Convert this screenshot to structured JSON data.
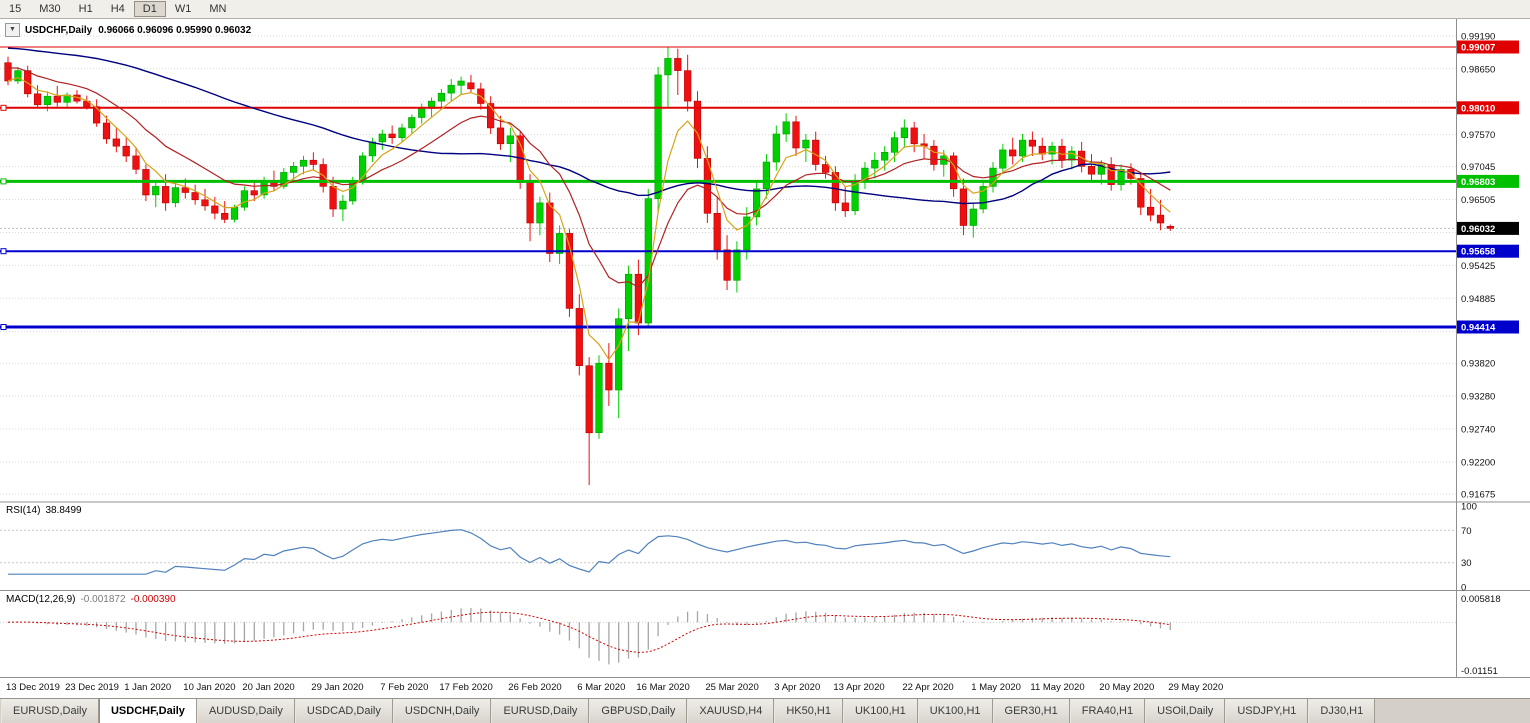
{
  "toolbar": {
    "timeframes": [
      "15",
      "M30",
      "H1",
      "H4",
      "D1",
      "W1",
      "MN"
    ],
    "active": "D1"
  },
  "chart": {
    "title_symbol": "USDCHF,Daily",
    "title_ohlc": "0.96066 0.96096 0.95990 0.96032",
    "collapse_icon": "▼"
  },
  "chart_data": {
    "type": "candlestick",
    "symbol": "USDCHF",
    "timeframe": "Daily",
    "last_ohlc": {
      "open": 0.96066,
      "high": 0.96096,
      "low": 0.9599,
      "close": 0.96032
    },
    "y_range": {
      "top": 0.9945,
      "bottom": 0.9156
    },
    "y_ticks": [
      "0.99190",
      "0.98650",
      "0.98110",
      "0.97570",
      "0.97045",
      "0.96505",
      "0.95965",
      "0.95425",
      "0.94885",
      "0.94345",
      "0.93820",
      "0.93280",
      "0.92740",
      "0.92200",
      "0.91675"
    ],
    "hlines": [
      {
        "label": "0.99007",
        "price": 0.99007,
        "color": "#e00000",
        "width": 1
      },
      {
        "label": "0.98010",
        "price": 0.9801,
        "color": "#e00000",
        "width": 2
      },
      {
        "label": "0.96803",
        "price": 0.96803,
        "color": "#00c000",
        "width": 3
      },
      {
        "label": "0.95658",
        "price": 0.95658,
        "color": "#0000cd",
        "width": 2
      },
      {
        "label": "0.94414",
        "price": 0.94414,
        "color": "#0000cd",
        "width": 3
      }
    ],
    "price_marker": {
      "label": "0.96032",
      "price": 0.96032,
      "bg": "#000000"
    },
    "moving_averages": [
      {
        "name": "fast",
        "period": 5,
        "color": "#d9a318"
      },
      {
        "name": "medium",
        "period": 14,
        "color": "#b22222"
      },
      {
        "name": "slow",
        "period": 45,
        "color": "#000080"
      }
    ],
    "colors": {
      "candle_up": "#00cf00",
      "candle_up_border": "#00a000",
      "candle_down": "#ee1111",
      "candle_down_border": "#bb0000"
    },
    "x_labels": [
      {
        "i": 0,
        "t": "13 Dec 2019"
      },
      {
        "i": 6,
        "t": "23 Dec 2019"
      },
      {
        "i": 12,
        "t": "1 Jan 2020"
      },
      {
        "i": 18,
        "t": "10 Jan 2020"
      },
      {
        "i": 24,
        "t": "20 Jan 2020"
      },
      {
        "i": 31,
        "t": "29 Jan 2020"
      },
      {
        "i": 38,
        "t": "7 Feb 2020"
      },
      {
        "i": 44,
        "t": "17 Feb 2020"
      },
      {
        "i": 51,
        "t": "26 Feb 2020"
      },
      {
        "i": 58,
        "t": "6 Mar 2020"
      },
      {
        "i": 64,
        "t": "16 Mar 2020"
      },
      {
        "i": 71,
        "t": "25 Mar 2020"
      },
      {
        "i": 78,
        "t": "3 Apr 2020"
      },
      {
        "i": 84,
        "t": "13 Apr 2020"
      },
      {
        "i": 91,
        "t": "22 Apr 2020"
      },
      {
        "i": 98,
        "t": "1 May 2020"
      },
      {
        "i": 104,
        "t": "11 May 2020"
      },
      {
        "i": 111,
        "t": "20 May 2020"
      },
      {
        "i": 118,
        "t": "29 May 2020"
      }
    ],
    "candles": [
      [
        0.9875,
        0.9885,
        0.9838,
        0.9845
      ],
      [
        0.9845,
        0.9868,
        0.984,
        0.9862
      ],
      [
        0.9862,
        0.987,
        0.9818,
        0.9824
      ],
      [
        0.9824,
        0.9838,
        0.98,
        0.9806
      ],
      [
        0.9806,
        0.9828,
        0.9795,
        0.982
      ],
      [
        0.982,
        0.9837,
        0.9803,
        0.981
      ],
      [
        0.981,
        0.9826,
        0.98,
        0.9822
      ],
      [
        0.9822,
        0.983,
        0.9808,
        0.9812
      ],
      [
        0.9812,
        0.9821,
        0.9798,
        0.9803
      ],
      [
        0.9803,
        0.9815,
        0.977,
        0.9776
      ],
      [
        0.9776,
        0.9788,
        0.9742,
        0.975
      ],
      [
        0.975,
        0.9768,
        0.9728,
        0.9738
      ],
      [
        0.9738,
        0.9752,
        0.9712,
        0.9722
      ],
      [
        0.9722,
        0.9735,
        0.9692,
        0.97
      ],
      [
        0.97,
        0.9708,
        0.9648,
        0.9658
      ],
      [
        0.9658,
        0.9682,
        0.9638,
        0.9672
      ],
      [
        0.9672,
        0.9692,
        0.9632,
        0.9645
      ],
      [
        0.9645,
        0.9678,
        0.9638,
        0.967
      ],
      [
        0.967,
        0.9685,
        0.9652,
        0.9662
      ],
      [
        0.9662,
        0.9675,
        0.9642,
        0.965
      ],
      [
        0.965,
        0.9668,
        0.9632,
        0.964
      ],
      [
        0.964,
        0.9655,
        0.9618,
        0.9628
      ],
      [
        0.9628,
        0.9648,
        0.9612,
        0.9618
      ],
      [
        0.9618,
        0.9642,
        0.9613,
        0.9638
      ],
      [
        0.9638,
        0.9672,
        0.9632,
        0.9665
      ],
      [
        0.9665,
        0.9682,
        0.9648,
        0.9658
      ],
      [
        0.9658,
        0.9688,
        0.9652,
        0.9682
      ],
      [
        0.9682,
        0.9698,
        0.9665,
        0.9672
      ],
      [
        0.9672,
        0.9702,
        0.9668,
        0.9695
      ],
      [
        0.9695,
        0.9712,
        0.9682,
        0.9705
      ],
      [
        0.9705,
        0.9722,
        0.9692,
        0.9715
      ],
      [
        0.9715,
        0.9728,
        0.9698,
        0.9708
      ],
      [
        0.9708,
        0.9718,
        0.9662,
        0.9672
      ],
      [
        0.9672,
        0.9688,
        0.9622,
        0.9635
      ],
      [
        0.9635,
        0.9658,
        0.9615,
        0.9648
      ],
      [
        0.9648,
        0.9688,
        0.9642,
        0.9682
      ],
      [
        0.9682,
        0.9728,
        0.9675,
        0.9722
      ],
      [
        0.9722,
        0.9752,
        0.9712,
        0.9745
      ],
      [
        0.9745,
        0.9765,
        0.9732,
        0.9758
      ],
      [
        0.9758,
        0.9772,
        0.9742,
        0.9752
      ],
      [
        0.9752,
        0.9775,
        0.9745,
        0.9768
      ],
      [
        0.9768,
        0.979,
        0.9758,
        0.9785
      ],
      [
        0.9785,
        0.9808,
        0.9775,
        0.98
      ],
      [
        0.98,
        0.9818,
        0.9785,
        0.9812
      ],
      [
        0.9812,
        0.9832,
        0.98,
        0.9825
      ],
      [
        0.9825,
        0.9848,
        0.9812,
        0.9838
      ],
      [
        0.9838,
        0.9852,
        0.9822,
        0.9845
      ],
      [
        0.9842,
        0.9855,
        0.9825,
        0.9832
      ],
      [
        0.9832,
        0.9842,
        0.9798,
        0.9808
      ],
      [
        0.9808,
        0.982,
        0.9758,
        0.9768
      ],
      [
        0.9768,
        0.9788,
        0.9732,
        0.9742
      ],
      [
        0.9742,
        0.9768,
        0.9712,
        0.9755
      ],
      [
        0.9755,
        0.9762,
        0.9668,
        0.9678
      ],
      [
        0.9678,
        0.9692,
        0.9582,
        0.9612
      ],
      [
        0.9612,
        0.9655,
        0.9592,
        0.9645
      ],
      [
        0.9645,
        0.9662,
        0.9548,
        0.9562
      ],
      [
        0.9562,
        0.9608,
        0.9545,
        0.9595
      ],
      [
        0.9595,
        0.9602,
        0.9458,
        0.9472
      ],
      [
        0.9472,
        0.9495,
        0.9362,
        0.9378
      ],
      [
        0.9378,
        0.9392,
        0.9182,
        0.9268
      ],
      [
        0.9268,
        0.9395,
        0.9258,
        0.9382
      ],
      [
        0.9382,
        0.9415,
        0.9312,
        0.9338
      ],
      [
        0.9338,
        0.9472,
        0.9292,
        0.9455
      ],
      [
        0.9455,
        0.9542,
        0.9402,
        0.9528
      ],
      [
        0.9528,
        0.9552,
        0.9428,
        0.9448
      ],
      [
        0.9448,
        0.9668,
        0.9442,
        0.9652
      ],
      [
        0.9652,
        0.9868,
        0.9628,
        0.9855
      ],
      [
        0.9855,
        0.9901,
        0.9802,
        0.9882
      ],
      [
        0.9882,
        0.9898,
        0.9822,
        0.9862
      ],
      [
        0.9862,
        0.9888,
        0.9795,
        0.9812
      ],
      [
        0.9812,
        0.9828,
        0.9702,
        0.9718
      ],
      [
        0.9718,
        0.9738,
        0.9612,
        0.9628
      ],
      [
        0.9628,
        0.9655,
        0.9552,
        0.9568
      ],
      [
        0.9568,
        0.9592,
        0.9502,
        0.9518
      ],
      [
        0.9518,
        0.9582,
        0.9498,
        0.9568
      ],
      [
        0.9568,
        0.9638,
        0.9552,
        0.9622
      ],
      [
        0.9622,
        0.9682,
        0.9608,
        0.9668
      ],
      [
        0.9668,
        0.9725,
        0.9652,
        0.9712
      ],
      [
        0.9712,
        0.9772,
        0.9698,
        0.9758
      ],
      [
        0.9758,
        0.9792,
        0.9745,
        0.9778
      ],
      [
        0.9778,
        0.9788,
        0.9722,
        0.9735
      ],
      [
        0.9735,
        0.9758,
        0.9712,
        0.9748
      ],
      [
        0.9748,
        0.9762,
        0.9698,
        0.9708
      ],
      [
        0.9708,
        0.9722,
        0.9685,
        0.9695
      ],
      [
        0.9695,
        0.9705,
        0.9632,
        0.9645
      ],
      [
        0.9645,
        0.9672,
        0.9622,
        0.9632
      ],
      [
        0.9632,
        0.9692,
        0.9625,
        0.9682
      ],
      [
        0.9682,
        0.9712,
        0.9668,
        0.9702
      ],
      [
        0.9702,
        0.9728,
        0.9685,
        0.9715
      ],
      [
        0.9715,
        0.9738,
        0.9698,
        0.9728
      ],
      [
        0.9728,
        0.9762,
        0.9712,
        0.9752
      ],
      [
        0.9752,
        0.9782,
        0.9735,
        0.9768
      ],
      [
        0.9768,
        0.9778,
        0.9728,
        0.9742
      ],
      [
        0.9742,
        0.9758,
        0.9718,
        0.9738
      ],
      [
        0.9738,
        0.9748,
        0.9698,
        0.9708
      ],
      [
        0.9708,
        0.9732,
        0.9688,
        0.9722
      ],
      [
        0.9722,
        0.9728,
        0.9655,
        0.9668
      ],
      [
        0.9668,
        0.9685,
        0.9592,
        0.9608
      ],
      [
        0.9608,
        0.9645,
        0.9588,
        0.9635
      ],
      [
        0.9635,
        0.9682,
        0.9628,
        0.9672
      ],
      [
        0.9672,
        0.9712,
        0.9662,
        0.9702
      ],
      [
        0.9702,
        0.9742,
        0.9692,
        0.9732
      ],
      [
        0.9732,
        0.9752,
        0.9708,
        0.9722
      ],
      [
        0.9722,
        0.9758,
        0.9712,
        0.9748
      ],
      [
        0.9748,
        0.9762,
        0.9722,
        0.9738
      ],
      [
        0.9738,
        0.9752,
        0.9715,
        0.9725
      ],
      [
        0.9725,
        0.9745,
        0.9708,
        0.9738
      ],
      [
        0.9738,
        0.975,
        0.9702,
        0.9715
      ],
      [
        0.9715,
        0.9738,
        0.97,
        0.973
      ],
      [
        0.973,
        0.9745,
        0.9695,
        0.9705
      ],
      [
        0.9705,
        0.9725,
        0.9682,
        0.9692
      ],
      [
        0.9692,
        0.9715,
        0.9675,
        0.9708
      ],
      [
        0.9708,
        0.972,
        0.9665,
        0.9675
      ],
      [
        0.9675,
        0.9708,
        0.9665,
        0.97
      ],
      [
        0.97,
        0.971,
        0.9675,
        0.9685
      ],
      [
        0.9685,
        0.9695,
        0.9625,
        0.9638
      ],
      [
        0.9638,
        0.9668,
        0.9615,
        0.9625
      ],
      [
        0.9625,
        0.965,
        0.96,
        0.9612
      ],
      [
        0.96066,
        0.96096,
        0.9599,
        0.96032
      ]
    ]
  },
  "rsi": {
    "label": "RSI(14)",
    "value": "38.8499",
    "color": "#4f81bd",
    "levels": [
      "100",
      "70",
      "30",
      "0"
    ]
  },
  "macd": {
    "label": "MACD(12,26,9)",
    "main_value": "-0.001872",
    "signal_value": "-0.000390",
    "axis_top": "0.005818",
    "axis_bottom": "-0.01151",
    "range": {
      "max": 0.005818,
      "min": -0.01151
    }
  },
  "tabs": {
    "items": [
      {
        "label": "EURUSD,Daily",
        "active": false
      },
      {
        "label": "USDCHF,Daily",
        "active": true
      },
      {
        "label": "AUDUSD,Daily",
        "active": false
      },
      {
        "label": "USDCAD,Daily",
        "active": false
      },
      {
        "label": "USDCNH,Daily",
        "active": false
      },
      {
        "label": "EURUSD,Daily",
        "active": false
      },
      {
        "label": "GBPUSD,Daily",
        "active": false
      },
      {
        "label": "XAUUSD,H4",
        "active": false
      },
      {
        "label": "HK50,H1",
        "active": false
      },
      {
        "label": "UK100,H1",
        "active": false
      },
      {
        "label": "UK100,H1",
        "active": false
      },
      {
        "label": "GER30,H1",
        "active": false
      },
      {
        "label": "FRA40,H1",
        "active": false
      },
      {
        "label": "USOil,Daily",
        "active": false
      },
      {
        "label": "USDJPY,H1",
        "active": false
      },
      {
        "label": "DJ30,H1",
        "active": false
      }
    ]
  }
}
